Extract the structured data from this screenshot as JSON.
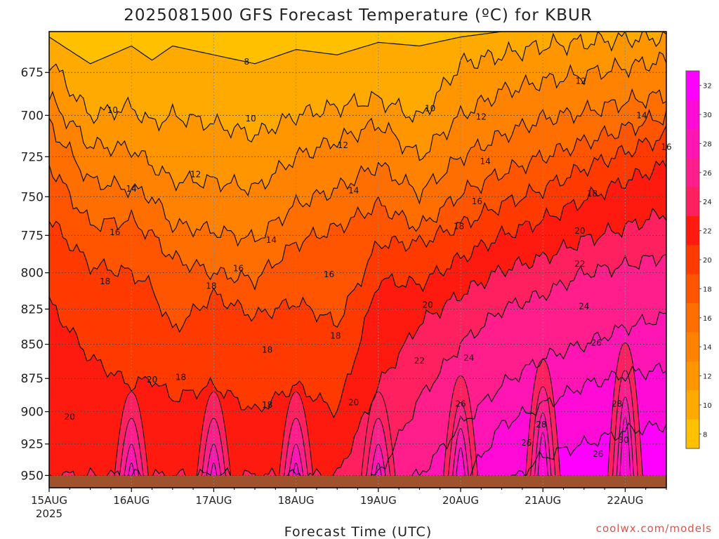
{
  "chart_data": {
    "type": "heatmap",
    "title": "2025081500 GFS Forecast Temperature (ºC) for KBUR",
    "xlabel": "Forecast Time (UTC)",
    "ylabel": "",
    "x_ticks": [
      "15AUG",
      "16AUG",
      "17AUG",
      "18AUG",
      "19AUG",
      "20AUG",
      "21AUG",
      "22AUG"
    ],
    "x_year_label": "2025",
    "x_range_days": [
      0,
      7.5
    ],
    "y_ticks": [
      675,
      700,
      725,
      750,
      775,
      800,
      825,
      850,
      875,
      900,
      925,
      950
    ],
    "y_range_hpa": [
      652,
      960
    ],
    "y_scale": "log-pressure",
    "grid": true,
    "colorbar": {
      "ticks": [
        8,
        10,
        12,
        14,
        16,
        18,
        20,
        22,
        24,
        26,
        28,
        30,
        32
      ],
      "range": [
        7,
        33
      ],
      "colors": [
        "#ffc000",
        "#ffaa00",
        "#ff9600",
        "#ff8200",
        "#ff6e00",
        "#ff5500",
        "#ff3a00",
        "#ff1a10",
        "#ff2060",
        "#ff1e8c",
        "#ff14b4",
        "#ff0ad6",
        "#ff00ff"
      ]
    },
    "contour_levels": [
      8,
      10,
      12,
      14,
      16,
      18,
      20,
      22,
      24,
      26,
      28,
      30
    ],
    "isotherm_profile": {
      "x_days": [
        0,
        0.5,
        1,
        1.25,
        1.5,
        2,
        2.5,
        3,
        3.5,
        4,
        4.5,
        5,
        5.5,
        6,
        6.5,
        7,
        7.5
      ],
      "level_8_hpa": [
        655,
        670,
        660,
        668,
        660,
        665,
        670,
        662,
        665,
        658,
        660,
        655,
        652,
        652,
        652,
        652,
        652
      ],
      "level_10_hpa": [
        668,
        700,
        695,
        705,
        700,
        705,
        712,
        700,
        695,
        690,
        702,
        670,
        665,
        660,
        658,
        656,
        655
      ],
      "level_12_hpa": [
        690,
        718,
        720,
        730,
        740,
        740,
        745,
        725,
        715,
        705,
        725,
        700,
        686,
        680,
        676,
        672,
        668
      ],
      "level_14_hpa": [
        705,
        740,
        745,
        750,
        768,
        772,
        778,
        755,
        745,
        730,
        748,
        725,
        712,
        702,
        698,
        692,
        688
      ],
      "level_16_hpa": [
        730,
        768,
        765,
        775,
        790,
        800,
        805,
        780,
        770,
        755,
        770,
        748,
        735,
        725,
        716,
        708,
        700
      ],
      "level_18_hpa": [
        765,
        795,
        800,
        810,
        840,
        815,
        830,
        820,
        835,
        780,
        780,
        768,
        755,
        745,
        732,
        722,
        712
      ],
      "level_20_hpa": [
        820,
        860,
        880,
        875,
        890,
        880,
        900,
        880,
        900,
        805,
        808,
        790,
        775,
        765,
        752,
        740,
        730
      ],
      "level_22_hpa": [
        950,
        950,
        950,
        950,
        950,
        950,
        950,
        950,
        950,
        880,
        835,
        815,
        798,
        790,
        778,
        770,
        760
      ],
      "level_24_hpa": [
        960,
        960,
        960,
        960,
        960,
        960,
        960,
        960,
        960,
        950,
        890,
        850,
        825,
        815,
        800,
        795,
        788
      ],
      "level_26_hpa": [
        960,
        960,
        960,
        960,
        960,
        960,
        960,
        960,
        960,
        960,
        950,
        910,
        880,
        860,
        850,
        838,
        830
      ],
      "level_28_hpa": [
        960,
        960,
        960,
        960,
        960,
        960,
        960,
        960,
        960,
        960,
        960,
        960,
        910,
        895,
        880,
        872,
        868
      ],
      "level_30_hpa": [
        960,
        960,
        960,
        960,
        960,
        960,
        960,
        960,
        960,
        960,
        960,
        960,
        960,
        935,
        925,
        915,
        910
      ]
    },
    "surface_heating_peaks_days": [
      1,
      2,
      3,
      4,
      5,
      6,
      7
    ],
    "inline_labels": [
      {
        "text": "8",
        "x_day": 2.4,
        "hpa": 669
      },
      {
        "text": "10",
        "x_day": 0.77,
        "hpa": 697
      },
      {
        "text": "10",
        "x_day": 2.45,
        "hpa": 702
      },
      {
        "text": "10",
        "x_day": 4.63,
        "hpa": 696
      },
      {
        "text": "12",
        "x_day": 1.78,
        "hpa": 736
      },
      {
        "text": "12",
        "x_day": 3.57,
        "hpa": 718
      },
      {
        "text": "12",
        "x_day": 5.25,
        "hpa": 701
      },
      {
        "text": "12",
        "x_day": 6.46,
        "hpa": 680
      },
      {
        "text": "14",
        "x_day": 1.0,
        "hpa": 745
      },
      {
        "text": "14",
        "x_day": 2.7,
        "hpa": 778
      },
      {
        "text": "14",
        "x_day": 3.7,
        "hpa": 746
      },
      {
        "text": "14",
        "x_day": 5.3,
        "hpa": 728
      },
      {
        "text": "14",
        "x_day": 7.2,
        "hpa": 700
      },
      {
        "text": "16",
        "x_day": 0.8,
        "hpa": 773
      },
      {
        "text": "16",
        "x_day": 2.3,
        "hpa": 797
      },
      {
        "text": "16",
        "x_day": 3.4,
        "hpa": 801
      },
      {
        "text": "16",
        "x_day": 5.2,
        "hpa": 753
      },
      {
        "text": "16",
        "x_day": 7.5,
        "hpa": 719
      },
      {
        "text": "18",
        "x_day": 0.68,
        "hpa": 806
      },
      {
        "text": "18",
        "x_day": 1.97,
        "hpa": 809
      },
      {
        "text": "18",
        "x_day": 2.65,
        "hpa": 854
      },
      {
        "text": "18",
        "x_day": 3.48,
        "hpa": 844
      },
      {
        "text": "18",
        "x_day": 1.6,
        "hpa": 874
      },
      {
        "text": "18",
        "x_day": 2.65,
        "hpa": 895
      },
      {
        "text": "18",
        "x_day": 4.98,
        "hpa": 769
      },
      {
        "text": "18",
        "x_day": 6.6,
        "hpa": 748
      },
      {
        "text": "20",
        "x_day": 1.25,
        "hpa": 876
      },
      {
        "text": "20",
        "x_day": 0.25,
        "hpa": 904
      },
      {
        "text": "20",
        "x_day": 3.7,
        "hpa": 893
      },
      {
        "text": "20",
        "x_day": 4.6,
        "hpa": 822
      },
      {
        "text": "20",
        "x_day": 6.45,
        "hpa": 772
      },
      {
        "text": "22",
        "x_day": 4.5,
        "hpa": 862
      },
      {
        "text": "22",
        "x_day": 6.45,
        "hpa": 794
      },
      {
        "text": "24",
        "x_day": 5.1,
        "hpa": 860
      },
      {
        "text": "24",
        "x_day": 6.5,
        "hpa": 823
      },
      {
        "text": "26",
        "x_day": 5.0,
        "hpa": 894
      },
      {
        "text": "26",
        "x_day": 6.65,
        "hpa": 849
      },
      {
        "text": "26",
        "x_day": 5.8,
        "hpa": 924
      },
      {
        "text": "26",
        "x_day": 6.67,
        "hpa": 933
      },
      {
        "text": "28",
        "x_day": 5.98,
        "hpa": 910
      },
      {
        "text": "28",
        "x_day": 6.9,
        "hpa": 894
      },
      {
        "text": "30",
        "x_day": 6.98,
        "hpa": 922
      }
    ]
  },
  "footer": {
    "credit": "coolwx.com/models"
  }
}
